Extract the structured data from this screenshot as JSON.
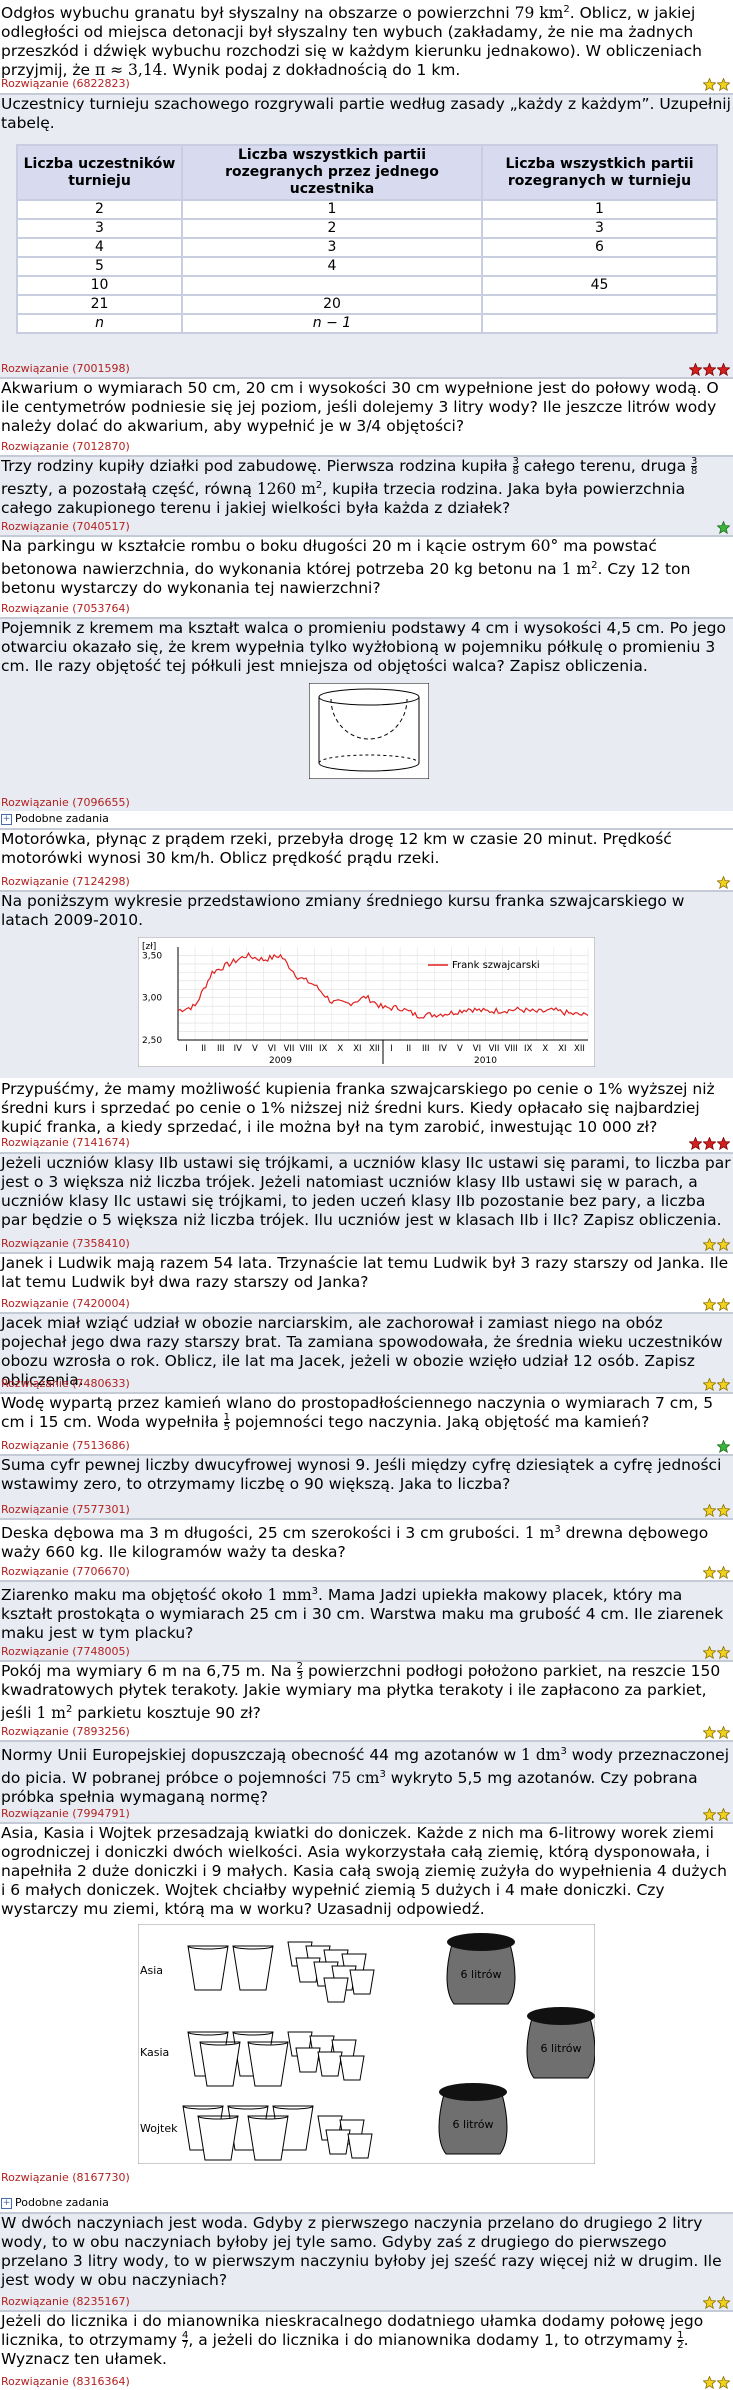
{
  "tasks": [
    {
      "text_a": "Odgłos wybuchu granatu był słyszalny na obszarze o powierzchni ",
      "math_a": "79 km",
      "sup_a": "2",
      "text_b": ". Oblicz, w jakiej odległości od miejsca detonacji był słyszalny ten wybuch (zakładamy, że nie ma żadnych przeszkód i dźwięk wybuchu rozchodzi się w każdym kierunku jednakowo). W obliczeniach przyjmij, że ",
      "math_b": "π ≈ 3,14",
      "text_c": ". Wynik podaj z dokładnością do 1 km.",
      "solution": "Rozwiązanie (6822823)"
    },
    {
      "text": "Uczestnicy turnieju szachowego rozgrywali partie według zasady „każdy z każdym”. Uzupełnij tabelę.",
      "solution": "Rozwiązanie (7001598)"
    },
    {
      "text": "Akwarium o wymiarach 50 cm, 20 cm i wysokości 30 cm wypełnione jest do połowy wodą. O ile centymetrów podniesie się jej poziom, jeśli dolejemy 3 litry wody? Ile jeszcze litrów wody należy dolać do akwarium, aby wypełnić je w 3/4 objętości?",
      "solution": "Rozwiązanie (7012870)"
    },
    {
      "text_a": "Trzy rodziny kupiły działki pod zabudowę. Pierwsza rodzina kupiła ",
      "f1n": "3",
      "f1d": "8",
      "text_b": " całego terenu, druga ",
      "f2n": "3",
      "f2d": "8",
      "text_c": " reszty, a pozostałą część, równą ",
      "math": "1260 m",
      "sup": "2",
      "text_d": ", kupiła trzecia rodzina. Jaka była powierzchnia całego zakupionego terenu i jakiej wielkości była każda z działek?",
      "solution": "Rozwiązanie (7040517)"
    },
    {
      "text_a": "Na parkingu w kształcie rombu o boku długości 20 m i kącie ostrym ",
      "math_a": "60°",
      "text_b": " ma powstać betonowa nawierzchnia, do wykonania której potrzeba 20 kg betonu na ",
      "math_b": "1 m",
      "sup_b": "2",
      "text_c": ". Czy 12 ton betonu wystarczy do wykonania tej nawierzchni?",
      "solution": "Rozwiązanie (7053764)"
    },
    {
      "text": "Pojemnik z kremem ma kształt walca o promieniu podstawy 4 cm i wysokości 4,5 cm. Po jego otwarciu okazało się, że krem wypełnia tylko wyżłobioną w pojemniku półkulę o promieniu 3 cm. Ile razy objętość tej półkuli jest mniejsza od objętości walca? Zapisz obliczenia.",
      "solution": "Rozwiązanie (7096655)"
    },
    {
      "text": "Motorówka, płynąc z prądem rzeki, przebyła drogę 12 km w czasie 20 minut. Prędkość motorówki wynosi 30 km/h. Oblicz prędkość prądu rzeki.",
      "solution": "Rozwiązanie (7124298)"
    },
    {
      "text": "Na poniższym wykresie przedstawiono zmiany średniego kursu franka szwajcarskiego w latach 2009-2010.",
      "solution": ""
    },
    {
      "text": "Przypuśćmy, że mamy możliwość kupienia franka szwajcarskiego po cenie o 1% wyższej niż średni kurs i sprzedać po cenie o 1% niższej niż średni kurs. Kiedy opłacało się najbardziej kupić franka, a kiedy sprzedać, i ile można był na tym zarobić, inwestując 10 000 zł?",
      "solution": "Rozwiązanie (7141674)"
    },
    {
      "text": "Jeżeli uczniów klasy IIb ustawi się trójkami, a uczniów klasy IIc ustawi się parami, to liczba par jest o 3 większa niż liczba trójek. Jeżeli natomiast uczniów klasy IIb ustawi się w parach, a uczniów klasy IIc ustawi się trójkami, to jeden uczeń klasy IIb pozostanie bez pary, a liczba par będzie o 5 większa niż liczba trójek. Ilu uczniów jest w klasach IIb i IIc? Zapisz obliczenia.",
      "solution": "Rozwiązanie (7358410)"
    },
    {
      "text": "Janek i Ludwik mają razem 54 lata. Trzynaście lat temu Ludwik był 3 razy starszy od Janka. Ile lat temu Ludwik był dwa razy starszy od Janka?",
      "solution": "Rozwiązanie (7420004)"
    },
    {
      "text": "Jacek miał wziąć udział w obozie narciarskim, ale zachorował i zamiast niego na obóz pojechał jego dwa razy starszy brat. Ta zamiana spowodowała, że średnia wieku uczestników obozu wzrosła o rok. Oblicz, ile lat ma Jacek, jeżeli w obozie wzięło udział 12 osób. Zapisz obliczenia.",
      "solution": "Rozwiązanie (7480633)"
    },
    {
      "text_a": "Wodę wypartą przez kamień wlano do prostopadłościennego naczynia o wymiarach 7 cm, 5 cm i 15 cm. Woda wypełniła ",
      "fn": "1",
      "fd": "5",
      "text_b": " pojemności tego naczynia. Jaką objętość ma kamień?",
      "solution": "Rozwiązanie (7513686)"
    },
    {
      "text": "Suma cyfr pewnej liczby dwucyfrowej wynosi 9. Jeśli między cyfrę dziesiątek a cyfrę jedności wstawimy zero, to otrzymamy liczbę o 90 większą. Jaka to liczba?",
      "solution": "Rozwiązanie (7577301)"
    },
    {
      "text_a": "Deska dębowa ma 3 m długości, 25 cm szerokości i 3 cm grubości. ",
      "math": "1 m",
      "sup": "3",
      "text_b": " drewna dębowego waży 660 kg. Ile kilogramów waży ta deska?",
      "solution": "Rozwiązanie (7706670)"
    },
    {
      "text_a": "Ziarenko maku ma objętość około ",
      "math": "1 mm",
      "sup": "3",
      "text_b": ". Mama Jadzi upiekła makowy placek, który ma kształt prostokąta o wymiarach 25 cm i 30 cm. Warstwa maku ma grubość 4 cm. Ile ziarenek maku jest w tym placku?",
      "solution": "Rozwiązanie (7748005)"
    },
    {
      "text_a": "Pokój ma wymiary 6 m na 6,75 m. Na ",
      "fn": "2",
      "fd": "3",
      "text_b": " powierzchni podłogi położono parkiet, na reszcie 150 kwadratowych płytek terakoty. Jakie wymiary ma płytka terakoty i ile zapłacono za parkiet, jeśli ",
      "math": "1 m",
      "sup": "2",
      "text_c": " parkietu kosztuje 90 zł?",
      "solution": "Rozwiązanie (7893256)"
    },
    {
      "text_a": "Normy Unii Europejskiej dopuszczają obecność 44 mg azotanów w ",
      "math_a": "1 dm",
      "sup_a": "3",
      "text_b": " wody przeznaczonej do picia. W pobranej próbce o pojemności ",
      "math_b": "75 cm",
      "sup_b": "3",
      "text_c": " wykryto 5,5 mg azotanów. Czy pobrana próbka spełnia wymaganą normę?",
      "solution": "Rozwiązanie (7994791)"
    },
    {
      "text": "Asia, Kasia i Wojtek przesadzają kwiatki do doniczek. Każde z nich ma 6-litrowy worek ziemi ogrodniczej i doniczki dwóch wielkości. Asia wykorzystała całą ziemię, którą dysponowała, i napełniła 2 duże doniczki i 9 małych. Kasia całą swoją ziemię zużyła do wypełnienia 4 dużych i 6 małych doniczek. Wojtek chciałby wypełnić ziemią 5 dużych i 4 małe doniczki. Czy wystarczy mu ziemi, którą ma w worku? Uzasadnij odpowiedź.",
      "solution": "Rozwiązanie (8167730)"
    },
    {
      "text": "W dwóch naczyniach jest woda. Gdyby z pierwszego naczynia przelano do drugiego 2 litry wody, to w obu naczyniach byłoby jej tyle samo. Gdyby zaś z drugiego do pierwszego przelano 3 litry wody, to w pierwszym naczyniu byłoby jej sześć razy więcej niż w drugim. Ile jest wody w obu naczyniach?",
      "solution": "Rozwiązanie (8235167)"
    },
    {
      "text_a": "Jeżeli do licznika i do mianownika nieskracalnego dodatniego ułamka dodamy połowę jego licznika, to otrzymamy ",
      "f1n": "4",
      "f1d": "7",
      "text_b": ", a jeżeli do licznika i do mianownika dodamy 1, to otrzymamy ",
      "f2n": "1",
      "f2d": "2",
      "text_c": ". Wyznacz ten ułamek.",
      "solution": "Rozwiązanie (8316364)"
    }
  ],
  "similar_label": "Podobne zadania",
  "table": {
    "headers": [
      "Liczba uczestników turnieju",
      "Liczba wszystkich partii rozegranych przez jednego uczestnika",
      "Liczba wszystkich partii rozegranych w turnieju"
    ],
    "rows": [
      [
        "2",
        "1",
        "1"
      ],
      [
        "3",
        "2",
        "3"
      ],
      [
        "4",
        "3",
        "6"
      ],
      [
        "5",
        "4",
        ""
      ],
      [
        "10",
        "",
        "45"
      ],
      [
        "21",
        "20",
        ""
      ],
      [
        "n",
        "n − 1",
        ""
      ]
    ]
  },
  "chart_data": {
    "type": "line",
    "title": "",
    "ylabel": "[zł]",
    "ylim": [
      2.5,
      3.6
    ],
    "yticks": [
      "3,50",
      "3,00",
      "2,50"
    ],
    "legend": "Frank szwajcarski",
    "months": [
      "I",
      "II",
      "III",
      "IV",
      "V",
      "VI",
      "VII",
      "VIII",
      "IX",
      "X",
      "XI",
      "XII"
    ],
    "years": [
      "2009",
      "2010"
    ],
    "values": [
      2.85,
      2.9,
      3.3,
      3.4,
      3.5,
      3.45,
      3.5,
      3.25,
      3.15,
      2.95,
      2.93,
      3.01,
      2.88,
      2.88,
      2.79,
      2.8,
      2.82,
      2.87,
      2.84,
      2.85,
      2.86,
      2.83,
      2.85,
      2.81,
      2.79
    ]
  },
  "pots": {
    "rows": [
      "Asia",
      "Kasia",
      "Wojtek"
    ],
    "bag_label": "6 litrów"
  },
  "colors": {
    "solution": "#b22222",
    "alt_bg": "#e8ecf2",
    "star_yellow": "#f2d21a",
    "star_red": "#d42020",
    "star_green": "#3cb43c"
  }
}
